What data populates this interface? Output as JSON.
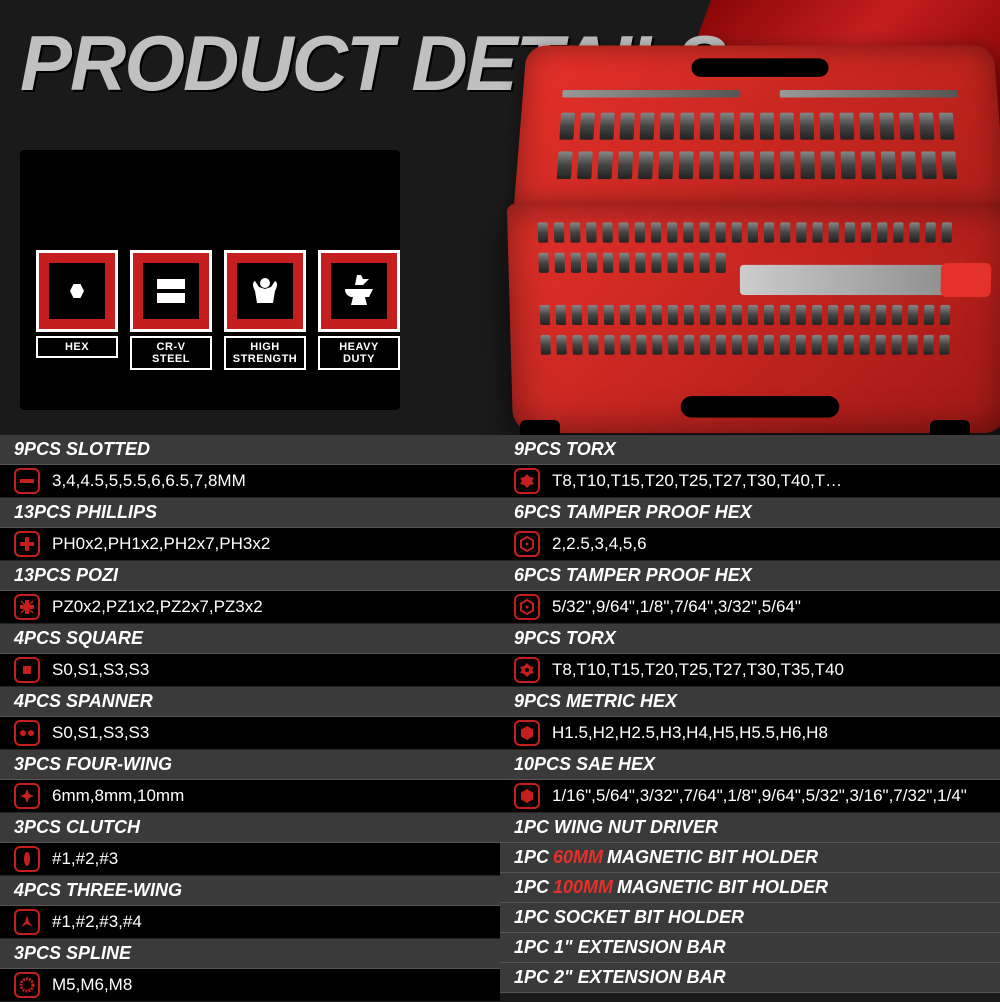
{
  "title": "PRODUCT DETAILS",
  "colors": {
    "accent_red": "#c41e1e",
    "case_red": "#e4312a",
    "bg_dark": "#1a1a1a",
    "row_header": "#3a3a3a",
    "row_value": "#000000",
    "text_white": "#ffffff"
  },
  "badges": [
    {
      "label": "HEX",
      "icon": "hex"
    },
    {
      "label": "CR-V STEEL",
      "icon": "steel"
    },
    {
      "label": "HIGH STRENGTH",
      "icon": "strength"
    },
    {
      "label": "HEAVY DUTY",
      "icon": "anvil"
    }
  ],
  "left_column": [
    {
      "type": "header",
      "text": "9PCS SLOTTED"
    },
    {
      "type": "value",
      "icon": "slotted",
      "text": "3,4,4.5,5,5.5,6,6.5,7,8MM"
    },
    {
      "type": "header",
      "text": "13PCS PHILLIPS"
    },
    {
      "type": "value",
      "icon": "phillips",
      "text": "PH0x2,PH1x2,PH2x7,PH3x2"
    },
    {
      "type": "header",
      "text": "13PCS POZI"
    },
    {
      "type": "value",
      "icon": "pozi",
      "text": "PZ0x2,PZ1x2,PZ2x7,PZ3x2"
    },
    {
      "type": "header",
      "text": "4PCS SQUARE"
    },
    {
      "type": "value",
      "icon": "square",
      "text": "S0,S1,S3,S3"
    },
    {
      "type": "header",
      "text": "4PCS SPANNER"
    },
    {
      "type": "value",
      "icon": "spanner",
      "text": "S0,S1,S3,S3"
    },
    {
      "type": "header",
      "text": "3PCS FOUR-WING"
    },
    {
      "type": "value",
      "icon": "fourwing",
      "text": "6mm,8mm,10mm"
    },
    {
      "type": "header",
      "text": "3PCS CLUTCH"
    },
    {
      "type": "value",
      "icon": "clutch",
      "text": "#1,#2,#3"
    },
    {
      "type": "header",
      "text": "4PCS THREE-WING"
    },
    {
      "type": "value",
      "icon": "threewing",
      "text": "#1,#2,#3,#4"
    },
    {
      "type": "header",
      "text": "3PCS SPLINE"
    },
    {
      "type": "value",
      "icon": "spline",
      "text": "M5,M6,M8"
    }
  ],
  "right_column": [
    {
      "type": "header",
      "text": "9PCS TORX"
    },
    {
      "type": "value",
      "icon": "torx",
      "text": "T8,T10,T15,T20,T25,T27,T30,T40,T…"
    },
    {
      "type": "header",
      "text": "6PCS TAMPER PROOF HEX"
    },
    {
      "type": "value",
      "icon": "tamperhex",
      "text": "2,2.5,3,4,5,6"
    },
    {
      "type": "header",
      "text": "6PCS TAMPER PROOF HEX"
    },
    {
      "type": "value",
      "icon": "tamperhex",
      "text": "5/32\",9/64\",1/8\",7/64\",3/32\",5/64\""
    },
    {
      "type": "header",
      "text": "9PCS TORX"
    },
    {
      "type": "value",
      "icon": "torxsec",
      "text": "T8,T10,T15,T20,T25,T27,T30,T35,T40"
    },
    {
      "type": "header",
      "text": "9PCS METRIC HEX"
    },
    {
      "type": "value",
      "icon": "hex",
      "text": "H1.5,H2,H2.5,H3,H4,H5,H5.5,H6,H8"
    },
    {
      "type": "header",
      "text": "10PCS SAE HEX"
    },
    {
      "type": "value",
      "icon": "hex",
      "text": "1/16\",5/64\",3/32\",7/64\",1/8\",9/64\",5/32\",3/16\",7/32\",1/4\""
    },
    {
      "type": "header",
      "text": "1PC WING NUT DRIVER"
    },
    {
      "type": "header",
      "pre": "1PC ",
      "red": "60MM",
      "post": " MAGNETIC BIT HOLDER"
    },
    {
      "type": "header",
      "pre": "1PC ",
      "red": "100MM",
      "post": " MAGNETIC BIT HOLDER"
    },
    {
      "type": "header",
      "text": "1PC SOCKET BIT HOLDER"
    },
    {
      "type": "header",
      "text": "1PC 1\" EXTENSION BAR"
    },
    {
      "type": "header",
      "text": "1PC 2\" EXTENSION BAR"
    }
  ]
}
